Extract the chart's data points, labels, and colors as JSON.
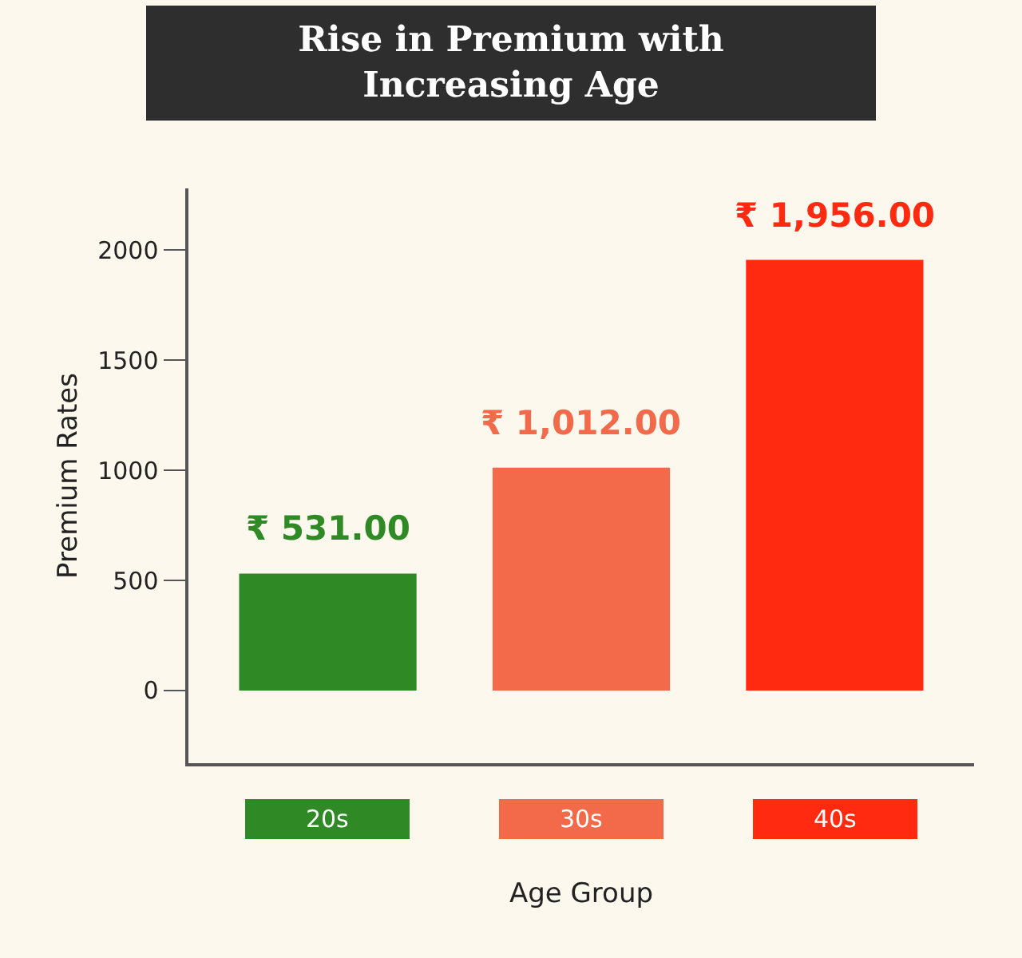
{
  "chart_data": {
    "type": "bar",
    "title": "Rise in Premium with Increasing Age",
    "categories": [
      "20s",
      "30s",
      "40s"
    ],
    "values": [
      531,
      1012,
      1956
    ],
    "colors": [
      "#2f8a25",
      "#f26a4a",
      "#ff2a10"
    ],
    "value_labels": [
      "₹ 531.00",
      "₹ 1,012.00",
      "₹ 1,956.00"
    ],
    "xlabel": "Age Group",
    "ylabel": "Premium Rates",
    "ylim": [
      -330,
      2280
    ],
    "yticks": [
      0,
      500,
      1000,
      1500,
      2000
    ],
    "grid": false,
    "legend": false
  }
}
